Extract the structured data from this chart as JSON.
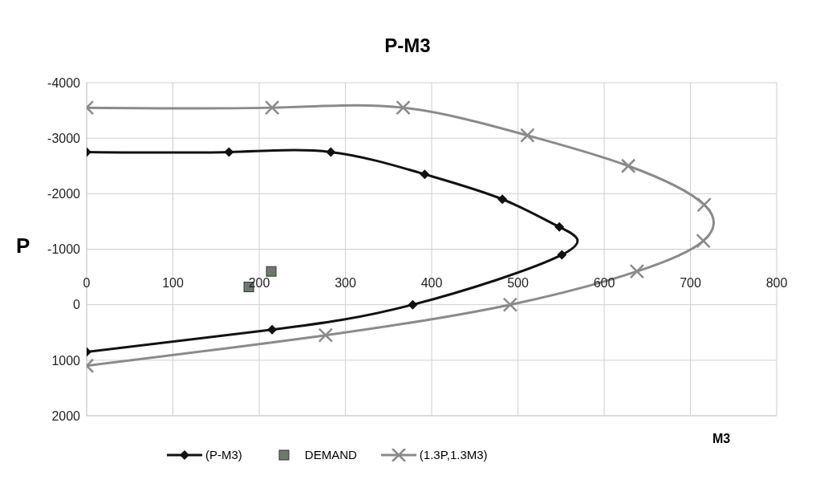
{
  "chart_data": {
    "type": "line",
    "title": "P-M3",
    "xlabel": "M3",
    "ylabel": "P",
    "xlim": [
      0,
      800
    ],
    "xticks": [
      0,
      100,
      200,
      300,
      400,
      500,
      600,
      700,
      800
    ],
    "ylim": [
      2000,
      -4000
    ],
    "yticks": [
      -4000,
      -3000,
      -2000,
      -1000,
      0,
      1000,
      2000
    ],
    "grid": true,
    "legend": "bottom",
    "line_style": "solid",
    "series": [
      {
        "name": "(P-M3)",
        "color": "#111111",
        "marker": "diamond",
        "x": [
          0,
          165,
          283,
          392,
          482,
          548,
          551,
          378,
          215,
          0
        ],
        "values": [
          -2750,
          -2750,
          -2750,
          -2350,
          -1900,
          -1400,
          -900,
          0,
          450,
          850
        ]
      },
      {
        "name": "DEMAND",
        "type": "scatter",
        "color": "#6f7a6f",
        "marker": "square",
        "x": [
          188,
          214
        ],
        "values": [
          -320,
          -600
        ]
      },
      {
        "name": "(1.3P,1.3M3)",
        "color": "#8a8a8a",
        "marker": "cross",
        "x": [
          0,
          215,
          367,
          511,
          628,
          716,
          715,
          638,
          491,
          277,
          0
        ],
        "values": [
          -3550,
          -3550,
          -3550,
          -3050,
          -2500,
          -1800,
          -1150,
          -600,
          0,
          550,
          1100
        ]
      }
    ]
  }
}
